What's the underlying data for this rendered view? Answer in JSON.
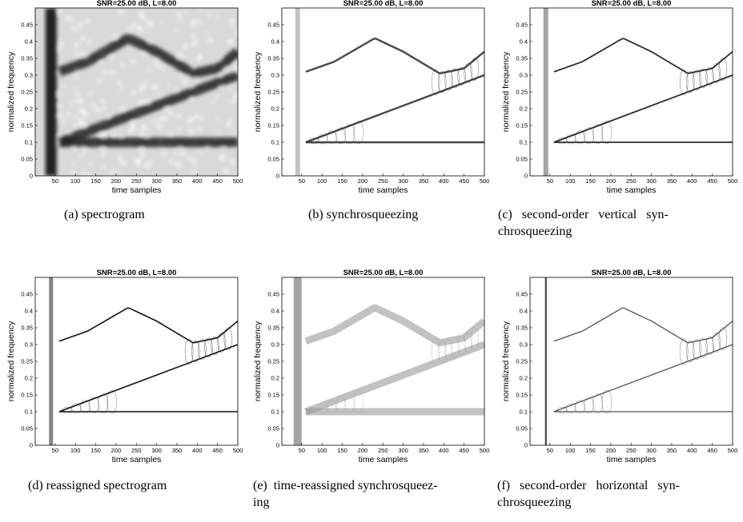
{
  "chart_data": [
    {
      "id": "a",
      "type": "heatmap",
      "title": "SNR=25.00 dB, L=8.00",
      "xlabel": "time samples",
      "ylabel": "normalized frequency",
      "xlim": [
        1,
        500
      ],
      "ylim": [
        0,
        0.5
      ],
      "xticks": [
        50,
        100,
        150,
        200,
        250,
        300,
        350,
        400,
        450,
        500
      ],
      "yticks": [
        0,
        0.05,
        0.1,
        0.15,
        0.2,
        0.25,
        0.3,
        0.35,
        0.4,
        0.45
      ],
      "colormap": "grayscale-inverted",
      "caption": "(a)  spectrogram",
      "components": [
        {
          "kind": "impulse",
          "x": 40
        },
        {
          "kind": "tone",
          "y": 0.1,
          "x_start": 60,
          "x_end": 500
        },
        {
          "kind": "chirp",
          "x": [
            60,
            500
          ],
          "y": [
            0.1,
            0.3
          ]
        },
        {
          "kind": "sinusoidal-fm",
          "x": [
            60,
            130,
            230,
            300,
            390,
            450,
            500
          ],
          "y": [
            0.31,
            0.34,
            0.41,
            0.37,
            0.305,
            0.32,
            0.37
          ]
        }
      ]
    },
    {
      "id": "b",
      "type": "heatmap",
      "title": "SNR=25.00 dB, L=8.00",
      "xlabel": "time samples",
      "ylabel": "normalized frequency",
      "xlim": [
        1,
        500
      ],
      "ylim": [
        0,
        0.5
      ],
      "xticks": [
        50,
        100,
        150,
        200,
        250,
        300,
        350,
        400,
        450,
        500
      ],
      "yticks": [
        0,
        0.05,
        0.1,
        0.15,
        0.2,
        0.25,
        0.3,
        0.35,
        0.4,
        0.45
      ],
      "colormap": "grayscale-inverted",
      "caption": "(b)  synchrosqueezing"
    },
    {
      "id": "c",
      "type": "heatmap",
      "title": "SNR=25.00 dB, L=8.00",
      "xlabel": "time samples",
      "ylabel": "normalized frequency",
      "xlim": [
        1,
        500
      ],
      "ylim": [
        0,
        0.5
      ],
      "xticks": [
        50,
        100,
        150,
        200,
        250,
        300,
        350,
        400,
        450,
        500
      ],
      "yticks": [
        0,
        0.05,
        0.1,
        0.15,
        0.2,
        0.25,
        0.3,
        0.35,
        0.4,
        0.45
      ],
      "colormap": "grayscale-inverted",
      "caption": "(c)   second-order   vertical   syn-chrosqueezing"
    },
    {
      "id": "d",
      "type": "heatmap",
      "title": "SNR=25.00 dB, L=8.00",
      "xlabel": "time samples",
      "ylabel": "normalized frequency",
      "xlim": [
        1,
        500
      ],
      "ylim": [
        0,
        0.5
      ],
      "xticks": [
        50,
        100,
        150,
        200,
        250,
        300,
        350,
        400,
        450,
        500
      ],
      "yticks": [
        0,
        0.05,
        0.1,
        0.15,
        0.2,
        0.25,
        0.3,
        0.35,
        0.4,
        0.45
      ],
      "colormap": "grayscale-inverted",
      "caption": "(d)  reassigned spectrogram"
    },
    {
      "id": "e",
      "type": "heatmap",
      "title": "SNR=25.00 dB, L=8.00",
      "xlabel": "time samples",
      "ylabel": "normalized frequency",
      "xlim": [
        1,
        500
      ],
      "ylim": [
        0,
        0.5
      ],
      "xticks": [
        50,
        100,
        150,
        200,
        250,
        300,
        350,
        400,
        450,
        500
      ],
      "yticks": [
        0,
        0.05,
        0.1,
        0.15,
        0.2,
        0.25,
        0.3,
        0.35,
        0.4,
        0.45
      ],
      "colormap": "grayscale-inverted",
      "caption": "(e)  time-reassigned synchrosqueez-ing"
    },
    {
      "id": "f",
      "type": "heatmap",
      "title": "SNR=25.00 dB, L=8.00",
      "xlabel": "time samples",
      "ylabel": "normalized frequency",
      "xlim": [
        1,
        500
      ],
      "ylim": [
        0,
        0.5
      ],
      "xticks": [
        50,
        100,
        150,
        200,
        250,
        300,
        350,
        400,
        450,
        500
      ],
      "yticks": [
        0,
        0.05,
        0.1,
        0.15,
        0.2,
        0.25,
        0.3,
        0.35,
        0.4,
        0.45
      ],
      "colormap": "grayscale-inverted",
      "caption": "(f)   second-order   horizontal   syn-chrosqueezing"
    }
  ]
}
